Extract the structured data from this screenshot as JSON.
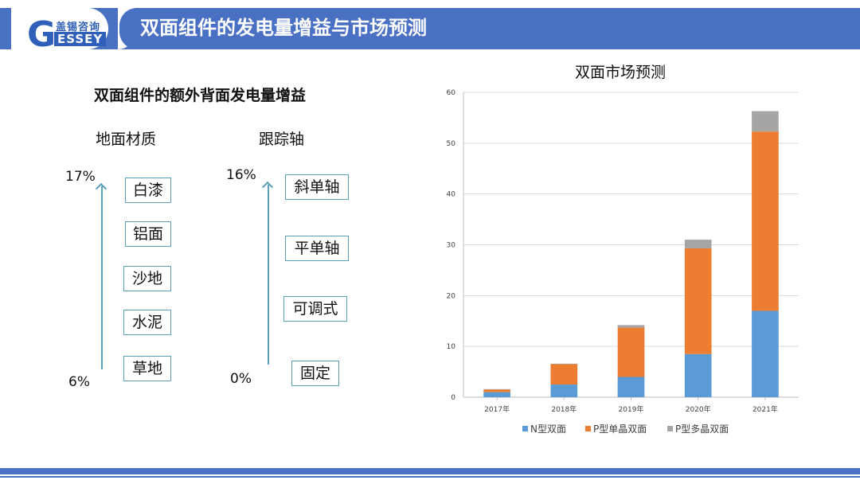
{
  "header": {
    "logo_cn": "盖锡咨询",
    "logo_letter": "G",
    "logo_en": "ESSEY",
    "title": "双面组件的发电量增益与市场预测"
  },
  "left": {
    "title": "双面组件的额外背面发电量增益",
    "ground": {
      "heading": "地面材质",
      "top_pct": "17%",
      "bottom_pct": "6%",
      "items": [
        "白漆",
        "铝面",
        "沙地",
        "水泥",
        "草地"
      ]
    },
    "tracker": {
      "heading": "跟踪轴",
      "top_pct": "16%",
      "bottom_pct": "0%",
      "items": [
        "斜单轴",
        "平单轴",
        "可调式",
        "固定"
      ]
    }
  },
  "chart_data": {
    "type": "bar",
    "stacked": true,
    "title": "双面市场预测",
    "categories": [
      "2017年",
      "2018年",
      "2019年",
      "2020年",
      "2021年"
    ],
    "series": [
      {
        "name": "N型双面",
        "color": "#5b9bd5",
        "values": [
          1.0,
          2.5,
          4.0,
          8.5,
          17.0
        ]
      },
      {
        "name": "P型单晶双面",
        "color": "#ed7d31",
        "values": [
          0.5,
          4.0,
          9.7,
          20.8,
          35.3
        ]
      },
      {
        "name": "P型多晶双面",
        "color": "#a5a5a5",
        "values": [
          0.1,
          0.1,
          0.5,
          1.7,
          4.0
        ]
      }
    ],
    "ylim": [
      0,
      60
    ],
    "yticks": [
      0,
      10,
      20,
      30,
      40,
      50,
      60
    ],
    "grid": true,
    "legend": "bottom"
  }
}
